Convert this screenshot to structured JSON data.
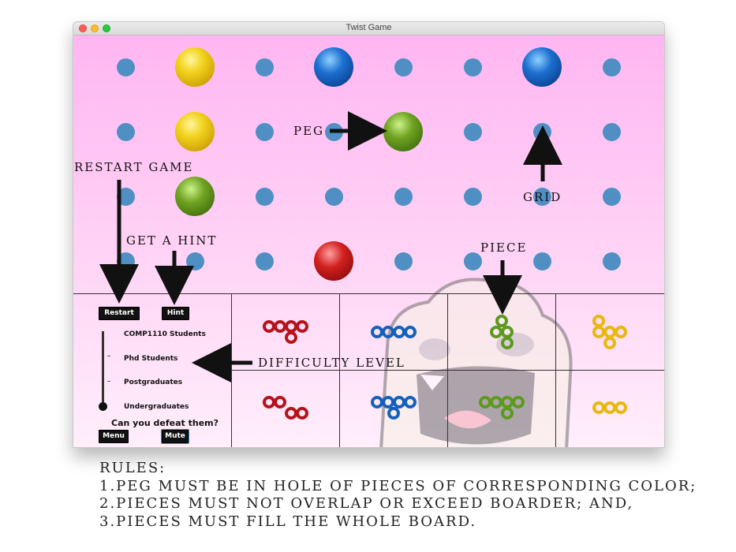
{
  "window": {
    "title": "Twist Game"
  },
  "board": {
    "holes_grid": {
      "rows": 4,
      "cols": 8
    },
    "pegs": [
      {
        "row": 1,
        "col": 2,
        "color": "yellow"
      },
      {
        "row": 1,
        "col": 4,
        "color": "blue"
      },
      {
        "row": 1,
        "col": 7,
        "color": "blue"
      },
      {
        "row": 2,
        "col": 2,
        "color": "yellow"
      },
      {
        "row": 2,
        "col": 5,
        "color": "green"
      },
      {
        "row": 3,
        "col": 2,
        "color": "green"
      },
      {
        "row": 4,
        "col": 4,
        "color": "red"
      }
    ]
  },
  "controls": {
    "restart_label": "Restart",
    "hint_label": "Hint",
    "menu_label": "Menu",
    "mute_label": "Mute",
    "difficulty_levels": [
      "COMP1110 Students",
      "Phd Students",
      "Postgraduates",
      "Undergraduates"
    ],
    "selected_difficulty": "Undergraduates",
    "prompt": "Can you defeat them?"
  },
  "pieces": [
    {
      "row": 1,
      "col": 1,
      "color": "red"
    },
    {
      "row": 1,
      "col": 2,
      "color": "blue"
    },
    {
      "row": 1,
      "col": 3,
      "color": "green"
    },
    {
      "row": 1,
      "col": 4,
      "color": "yellow"
    },
    {
      "row": 2,
      "col": 1,
      "color": "red"
    },
    {
      "row": 2,
      "col": 2,
      "color": "blue"
    },
    {
      "row": 2,
      "col": 3,
      "color": "green"
    },
    {
      "row": 2,
      "col": 4,
      "color": "yellow"
    }
  ],
  "annotations": {
    "peg": "PEG",
    "restart_game": "RESTART GAME",
    "grid": "GRID",
    "get_hint": "GET A HINT",
    "piece": "PIECE",
    "difficulty_level": "DIFFICULTY LEVEL"
  },
  "rules": {
    "heading": "RULES:",
    "lines": [
      "1.PEG MUST BE IN HOLE OF PIECES OF CORRESPONDING COLOR;",
      "2.PIECES MUST NOT OVERLAP OR EXCEED BOARDER; AND,",
      "3.PIECES MUST FILL THE WHOLE BOARD."
    ]
  },
  "colors": {
    "hole": "#4f8fc4",
    "red": "#b5121b",
    "blue": "#1560bd",
    "green": "#5c9a1e",
    "yellow": "#e8b80c",
    "background_top": "#ffb6f2"
  }
}
